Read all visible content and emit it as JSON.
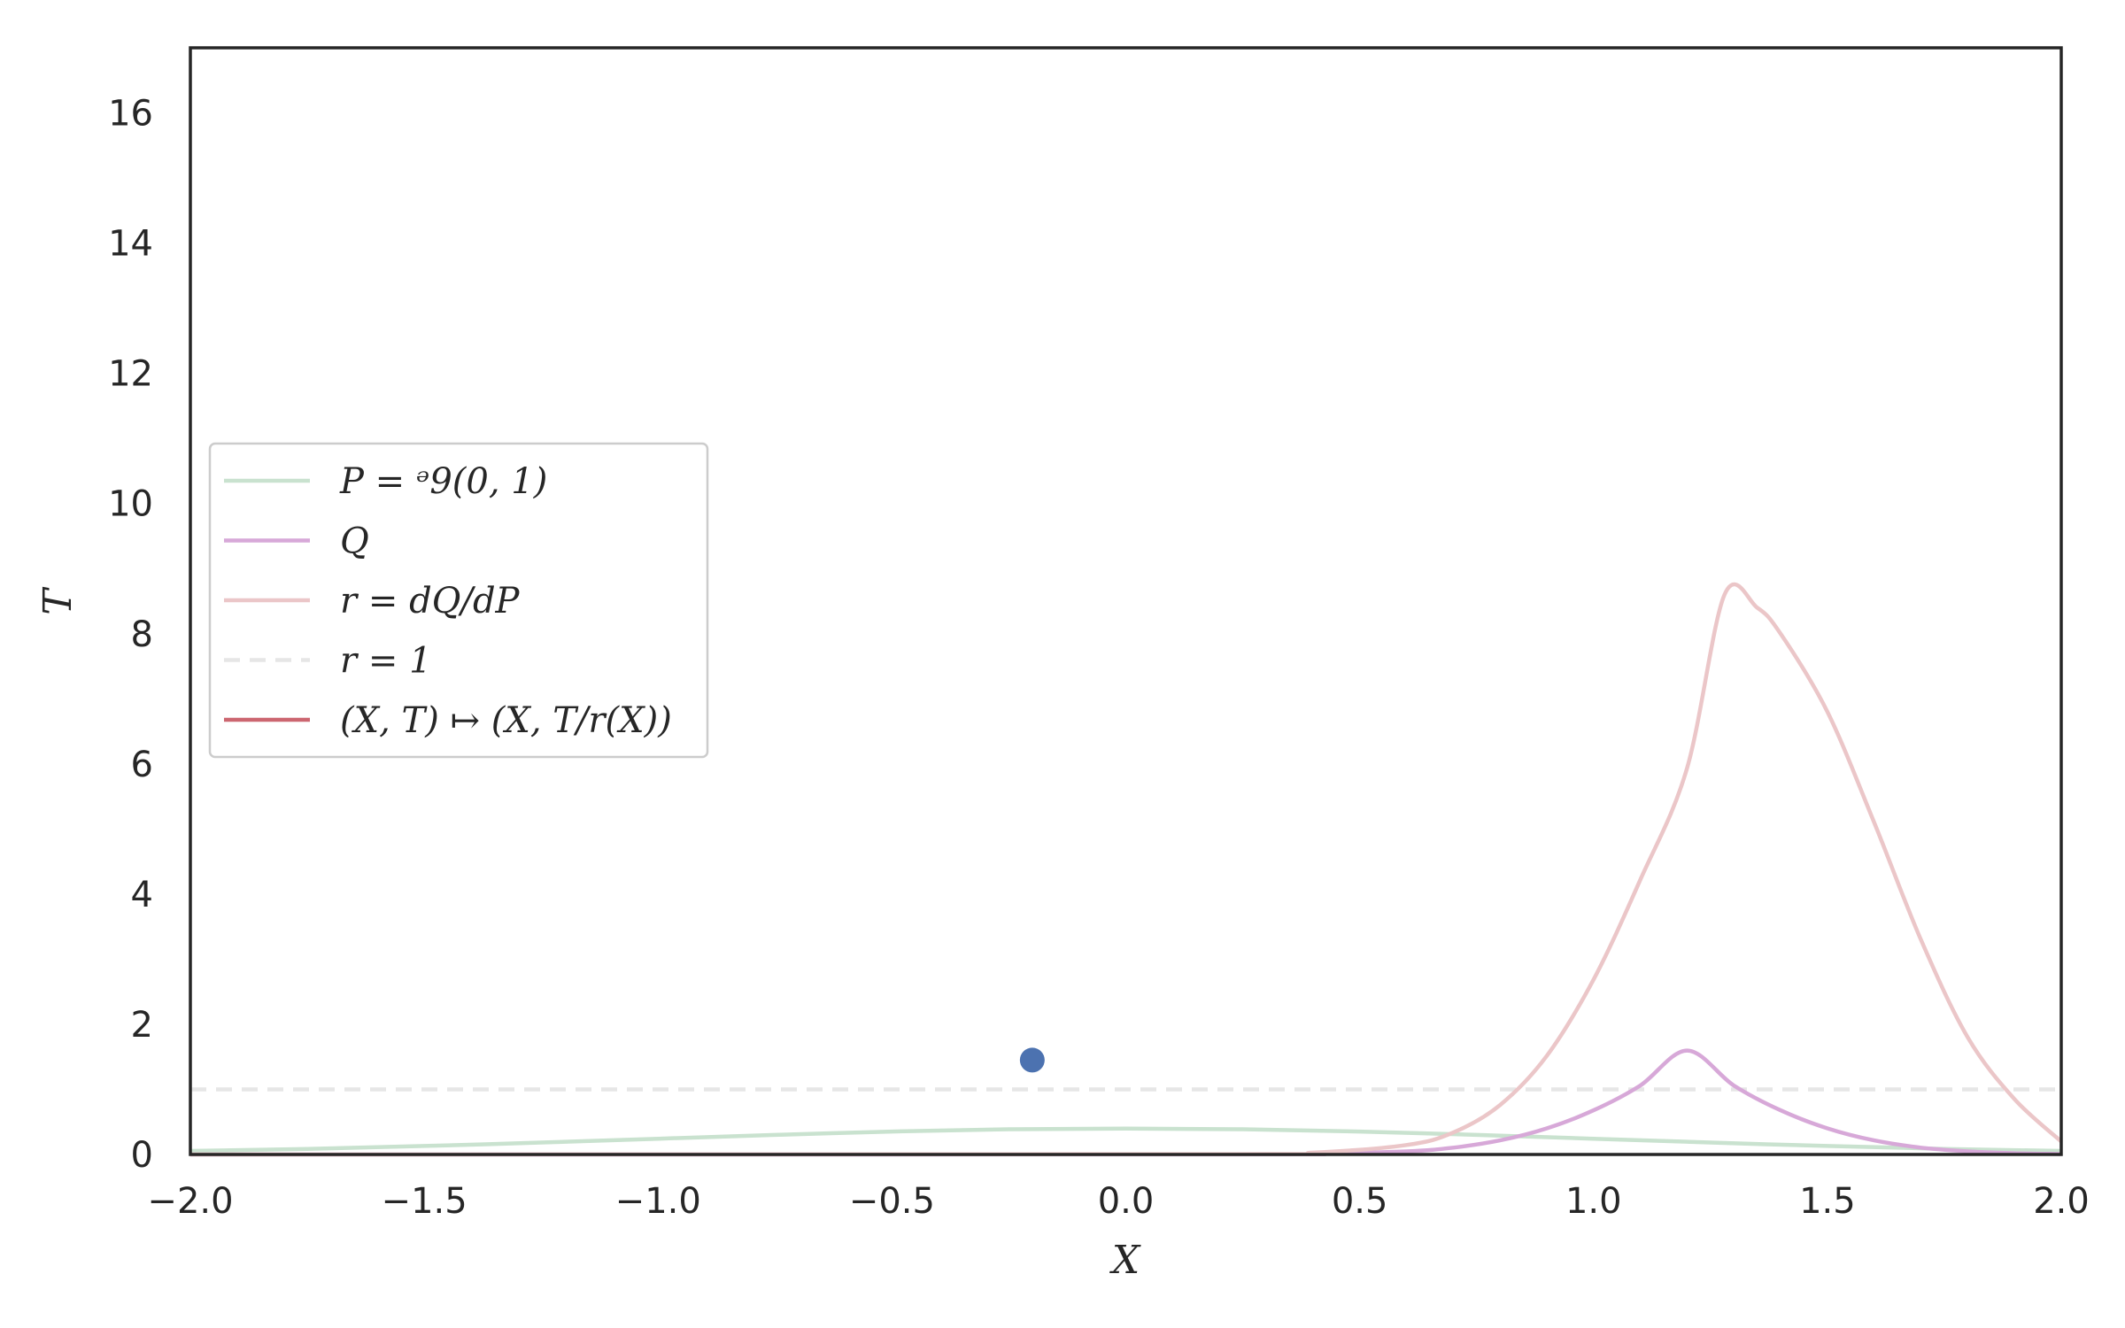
{
  "chart_data": {
    "type": "line",
    "xlabel": "X",
    "ylabel": "T",
    "xlim": [
      -2.0,
      2.0
    ],
    "ylim": [
      0,
      17
    ],
    "xticks": [
      -2.0,
      -1.5,
      -1.0,
      -0.5,
      0.0,
      0.5,
      1.0,
      1.5,
      2.0
    ],
    "xtick_labels": [
      "−2.0",
      "−1.5",
      "−1.0",
      "−0.5",
      "0.0",
      "0.5",
      "1.0",
      "1.5",
      "2.0"
    ],
    "yticks": [
      0,
      2,
      4,
      6,
      8,
      10,
      12,
      14,
      16
    ],
    "ytick_labels": [
      "0",
      "2",
      "4",
      "6",
      "8",
      "10",
      "12",
      "14",
      "16"
    ],
    "grid": false,
    "legend_position": "center-left",
    "series": [
      {
        "name": "P = ᵊ9(0, 1)",
        "color": "#c9e2cf",
        "style": "solid",
        "x": [
          -2.0,
          -1.75,
          -1.5,
          -1.25,
          -1.0,
          -0.75,
          -0.5,
          -0.25,
          0.0,
          0.25,
          0.5,
          0.75,
          1.0,
          1.25,
          1.5,
          1.75,
          2.0
        ],
        "y": [
          0.054,
          0.086,
          0.13,
          0.183,
          0.242,
          0.301,
          0.352,
          0.387,
          0.399,
          0.387,
          0.352,
          0.301,
          0.242,
          0.183,
          0.13,
          0.086,
          0.054
        ]
      },
      {
        "name": "Q",
        "color": "#d7a8d8",
        "style": "solid",
        "x": [
          -2.0,
          0.2,
          0.4,
          0.6,
          0.7,
          0.8,
          0.9,
          1.0,
          1.1,
          1.2,
          1.3,
          1.4,
          1.5,
          1.6,
          1.7,
          1.8,
          1.9,
          2.0
        ],
        "y": [
          0,
          0.002,
          0.01,
          0.048,
          0.105,
          0.216,
          0.401,
          0.678,
          1.06,
          1.596,
          1.06,
          0.678,
          0.401,
          0.216,
          0.105,
          0.048,
          0.019,
          0.007
        ]
      },
      {
        "name": "r = dQ/dP",
        "color": "#ebc6c8",
        "style": "solid",
        "x": [
          -2.0,
          0.2,
          0.4,
          0.6,
          0.7,
          0.8,
          0.9,
          1.0,
          1.1,
          1.2,
          1.28,
          1.35,
          1.4,
          1.5,
          1.6,
          1.7,
          1.8,
          1.9,
          2.0
        ],
        "y": [
          0,
          0.005,
          0.028,
          0.145,
          0.337,
          0.759,
          1.514,
          2.688,
          4.22,
          5.935,
          8.6,
          8.4,
          8.0,
          6.8,
          5.1,
          3.3,
          1.8,
          0.85,
          0.2
        ]
      },
      {
        "name": "r = 1",
        "color": "#e6e6e6",
        "style": "dashed",
        "x": [
          -2.0,
          2.0
        ],
        "y": [
          1,
          1
        ]
      },
      {
        "name": "(X, T) ↦ (X, T/r(X))",
        "color": "#cc6670",
        "style": "solid",
        "x": [],
        "y": []
      }
    ],
    "points": [
      {
        "x": -0.2,
        "y": 1.45,
        "color": "#4c72b0"
      }
    ]
  }
}
